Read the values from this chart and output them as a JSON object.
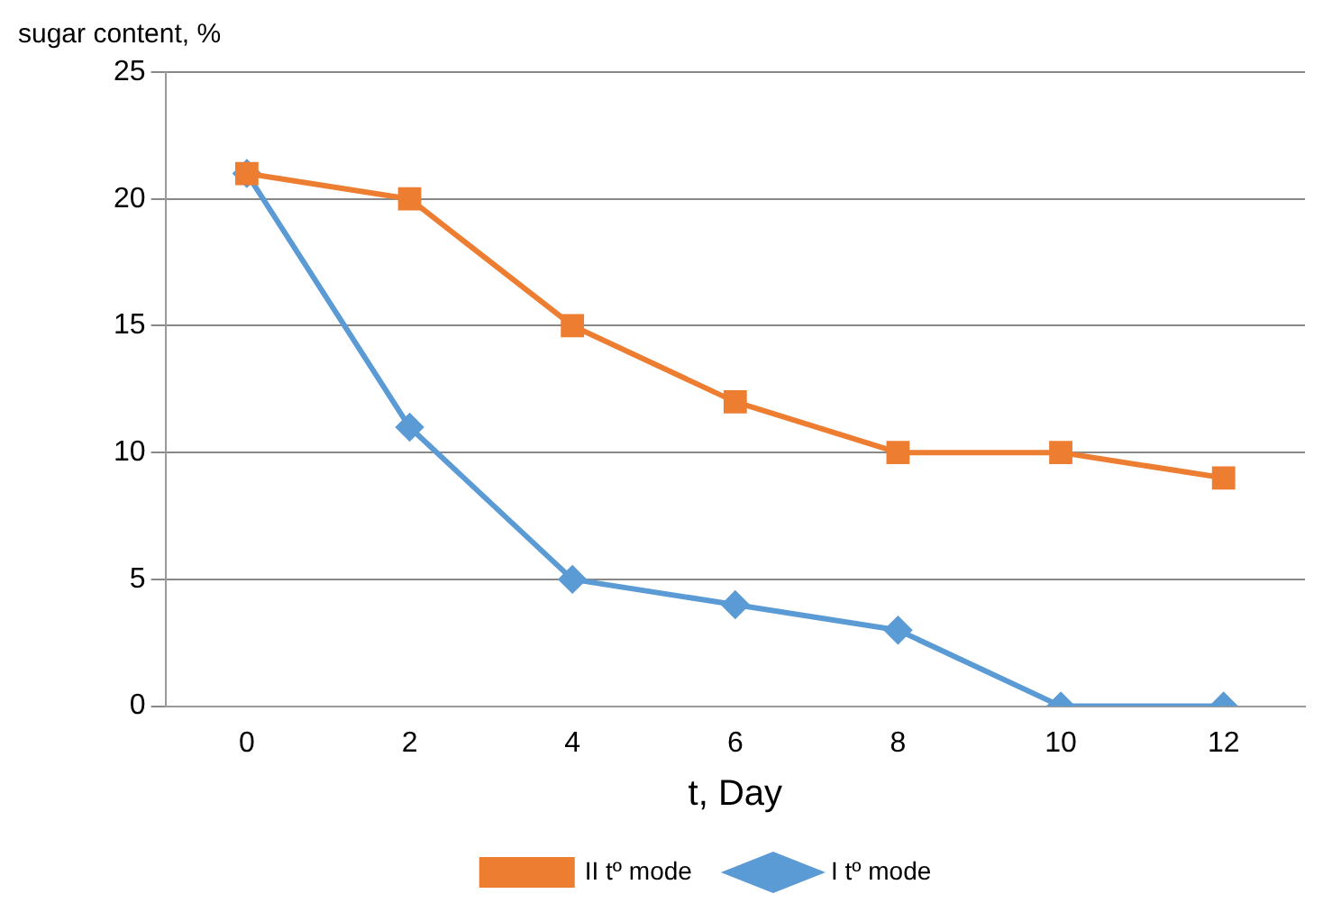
{
  "chart_data": {
    "type": "line",
    "xlabel": "t, Day",
    "ylabel": "sugar content, %",
    "categories": [
      "0",
      "2",
      "4",
      "6",
      "8",
      "10",
      "12"
    ],
    "series": [
      {
        "name": "I tº mode",
        "color": "#5b9bd5",
        "marker": "diamond",
        "values": [
          21,
          11,
          5,
          4,
          3,
          0,
          0
        ]
      },
      {
        "name": "II tº mode",
        "color": "#ed7d31",
        "marker": "square",
        "values": [
          21,
          20,
          15,
          12,
          10,
          10,
          9
        ]
      }
    ],
    "ylim": [
      0,
      25
    ],
    "yticks": [
      0,
      5,
      10,
      15,
      20,
      25
    ],
    "grid": "y",
    "legend": "bottom"
  }
}
